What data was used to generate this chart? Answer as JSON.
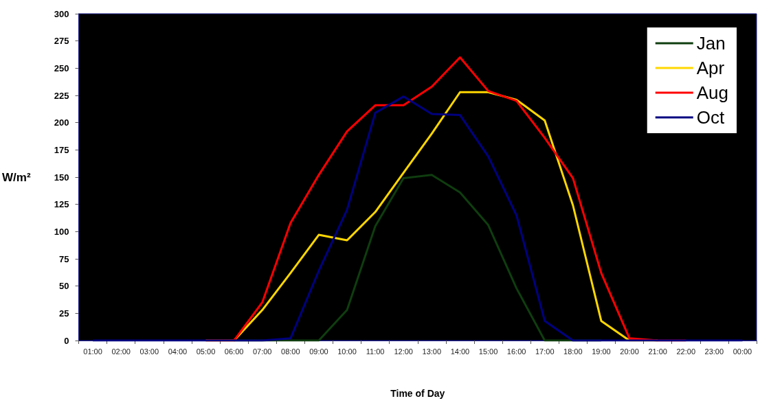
{
  "chart_data": {
    "type": "line",
    "xlabel": "Time of Day",
    "ylabel": "W/m²",
    "categories": [
      "01:00",
      "02:00",
      "03:00",
      "04:00",
      "05:00",
      "06:00",
      "07:00",
      "08:00",
      "09:00",
      "10:00",
      "11:00",
      "12:00",
      "13:00",
      "14:00",
      "15:00",
      "16:00",
      "17:00",
      "18:00",
      "19:00",
      "20:00",
      "21:00",
      "22:00",
      "23:00",
      "00:00"
    ],
    "series": [
      {
        "name": "Jan",
        "color": "#0f3d0f",
        "values": [
          null,
          null,
          null,
          null,
          null,
          0,
          0,
          0,
          0,
          28,
          105,
          149,
          152,
          136,
          106,
          48,
          0,
          0,
          0,
          null,
          null,
          null,
          null,
          null
        ]
      },
      {
        "name": "Apr",
        "color": "#ffd700",
        "values": [
          null,
          null,
          null,
          null,
          0,
          0,
          28,
          62,
          97,
          92,
          118,
          154,
          190,
          228,
          228,
          221,
          202,
          124,
          18,
          0,
          0,
          null,
          null,
          null
        ]
      },
      {
        "name": "Aug",
        "color": "#ff0000",
        "values": [
          null,
          null,
          null,
          null,
          0,
          0,
          35,
          108,
          152,
          192,
          216,
          216,
          233,
          260,
          229,
          220,
          186,
          149,
          62,
          2,
          0,
          0,
          null,
          null
        ]
      },
      {
        "name": "Oct",
        "color": "#000080",
        "values": [
          0,
          0,
          0,
          0,
          0,
          0,
          0,
          2,
          64,
          120,
          209,
          224,
          208,
          207,
          169,
          115,
          18,
          0,
          0,
          0,
          0,
          0,
          0,
          0
        ]
      }
    ],
    "ylim": [
      0,
      300
    ],
    "yticks": [
      0,
      25,
      50,
      75,
      100,
      125,
      150,
      175,
      200,
      225,
      250,
      275,
      300
    ],
    "grid": false,
    "legend": "top right"
  }
}
